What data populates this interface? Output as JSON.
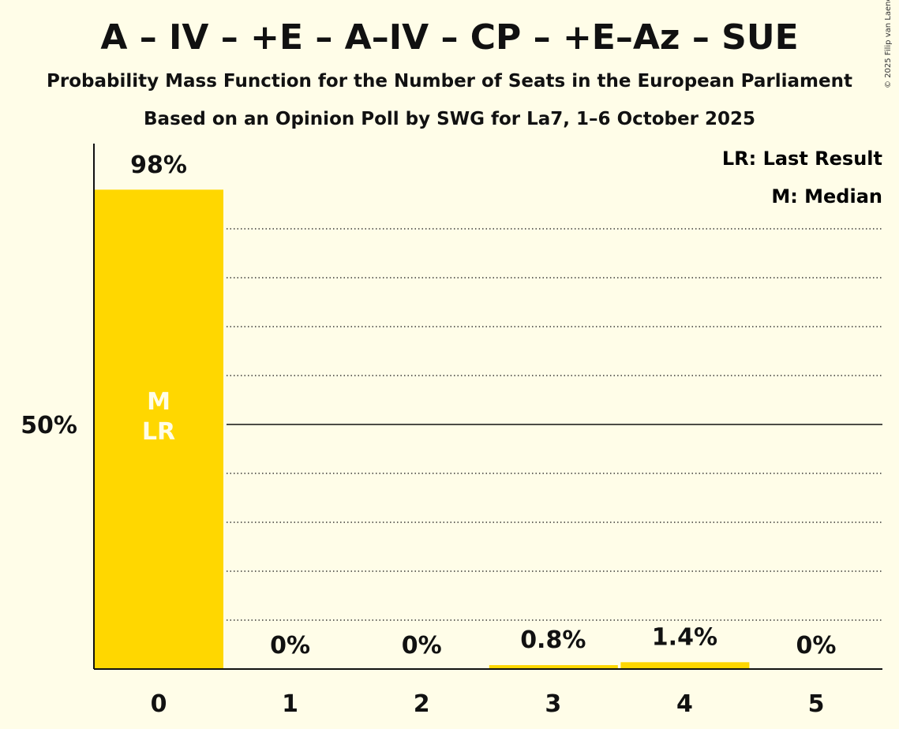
{
  "title": "A – IV – +E – A–IV – CP – +E–Az – SUE",
  "subtitle_1": "Probability Mass Function for the Number of Seats in the European Parliament",
  "subtitle_2": "Based on an Opinion Poll by SWG for La7, 1–6 October 2025",
  "copyright": "© 2025 Filip van Laenen",
  "legend": {
    "last_result": "LR: Last Result",
    "median": "M: Median"
  },
  "colors": {
    "background": "#fffde8",
    "bar": "#ffd700",
    "axis": "#111111",
    "marker_text": "#fffde8"
  },
  "chart_data": {
    "type": "bar",
    "categories": [
      "0",
      "1",
      "2",
      "3",
      "4",
      "5"
    ],
    "values": [
      98,
      0,
      0,
      0.8,
      1.4,
      0
    ],
    "value_labels": [
      "98%",
      "0%",
      "0%",
      "0.8%",
      "1.4%",
      "0%"
    ],
    "ylim": [
      0,
      100
    ],
    "y_ticks": [
      {
        "value": 50,
        "label": "50%"
      }
    ],
    "gridlines": [
      10,
      20,
      30,
      40,
      50,
      60,
      70,
      80,
      90
    ],
    "major_gridline": 50,
    "markers": {
      "median": "0",
      "last_result": "0"
    },
    "marker_labels": {
      "median": "M",
      "last_result": "LR"
    },
    "legend_position": "top-right"
  }
}
